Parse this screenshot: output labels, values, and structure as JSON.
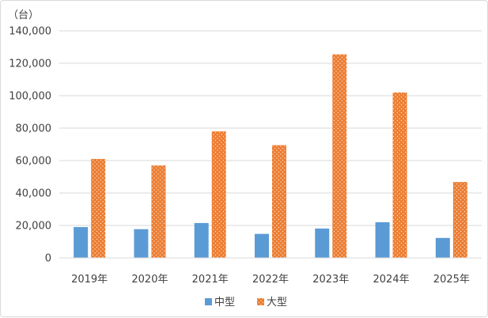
{
  "chart_data": {
    "type": "bar",
    "y_unit_label": "（台）",
    "categories": [
      "2019年",
      "2020年",
      "2021年",
      "2022年",
      "2023年",
      "2024年",
      "2025年"
    ],
    "series": [
      {
        "name": "中型",
        "color": "#5b9bd5",
        "values": [
          19000,
          17700,
          21500,
          14800,
          18100,
          22000,
          12300
        ]
      },
      {
        "name": "大型",
        "color": "#ed7d31",
        "pattern": "dotted",
        "values": [
          61000,
          57000,
          78000,
          69500,
          125500,
          102000,
          46800
        ]
      }
    ],
    "ylim": [
      0,
      140000
    ],
    "yticks": [
      "0",
      "20,000",
      "40,000",
      "60,000",
      "80,000",
      "100,000",
      "120,000",
      "140,000"
    ],
    "grid": true,
    "legend_position": "bottom"
  }
}
